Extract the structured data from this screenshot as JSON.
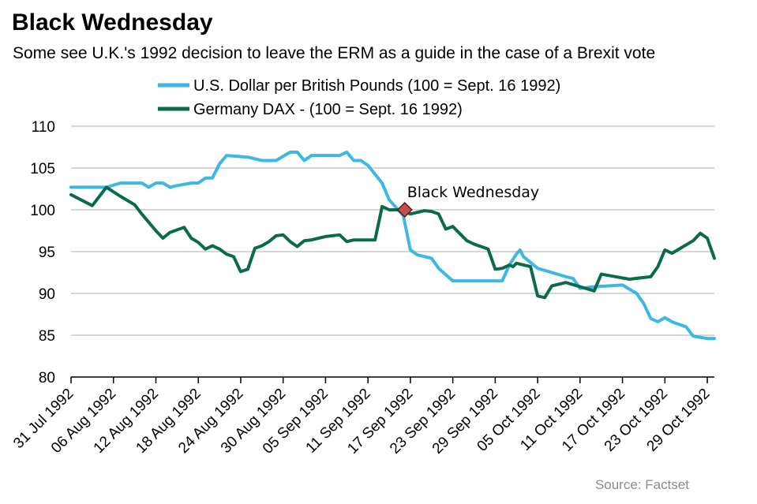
{
  "title": "Black Wednesday",
  "subtitle": "Some see U.K.'s 1992 decision  to leave the ERM as a guide in the case of a Brexit vote",
  "source": "Source: Factset",
  "chart_data": {
    "type": "line",
    "ylim": [
      80,
      110
    ],
    "yticks": [
      80,
      85,
      90,
      95,
      100,
      105,
      110
    ],
    "xlim": [
      0,
      91
    ],
    "xticks": [
      {
        "pos": 0,
        "label": "31 Jul 1992"
      },
      {
        "pos": 6,
        "label": "06 Aug 1992"
      },
      {
        "pos": 12,
        "label": "12 Aug 1992"
      },
      {
        "pos": 18,
        "label": "18 Aug 1992"
      },
      {
        "pos": 24,
        "label": "24 Aug 1992"
      },
      {
        "pos": 30,
        "label": "30 Aug 1992"
      },
      {
        "pos": 36,
        "label": "05 Sep 1992"
      },
      {
        "pos": 42,
        "label": "11 Sep 1992"
      },
      {
        "pos": 48,
        "label": "17 Sep 1992"
      },
      {
        "pos": 54,
        "label": "23 Sep 1992"
      },
      {
        "pos": 60,
        "label": "29 Sep 1992"
      },
      {
        "pos": 66,
        "label": "05 Oct 1992"
      },
      {
        "pos": 72,
        "label": "11 Oct 1992"
      },
      {
        "pos": 78,
        "label": "17 Oct 1992"
      },
      {
        "pos": 84,
        "label": "23 Oct 1992"
      },
      {
        "pos": 90,
        "label": "29 Oct 1992"
      }
    ],
    "grid": true,
    "legend_position": "top",
    "series": [
      {
        "name": "U.S. Dollar per British Pounds (100 = Sept. 16 1992)",
        "color": "#3db7e4",
        "x": [
          0,
          5,
          7,
          8,
          10,
          11,
          12,
          13,
          14,
          15,
          17,
          18,
          19,
          20,
          21,
          22,
          25,
          27,
          29,
          31,
          32,
          33,
          34,
          35,
          36,
          38,
          39,
          40,
          41,
          42,
          44,
          45,
          47,
          48,
          49,
          51,
          52,
          54,
          56,
          61,
          62,
          63,
          63.5,
          64,
          66,
          70,
          71,
          72,
          74,
          78,
          80,
          81,
          82,
          83,
          84,
          85,
          86,
          87,
          88,
          90,
          91
        ],
        "values": [
          102.7,
          102.7,
          103.2,
          103.2,
          103.2,
          102.7,
          103.2,
          103.2,
          102.7,
          102.9,
          103.2,
          103.2,
          103.8,
          103.8,
          105.5,
          106.5,
          106.3,
          105.9,
          105.9,
          106.9,
          106.9,
          105.9,
          106.5,
          106.5,
          106.5,
          106.5,
          106.9,
          105.9,
          105.9,
          105.3,
          103.2,
          101.2,
          99.3,
          95.2,
          94.6,
          94.2,
          93.0,
          91.5,
          91.5,
          91.5,
          93.4,
          94.7,
          95.2,
          94.4,
          93.0,
          92.0,
          91.8,
          90.6,
          90.8,
          91.0,
          90.0,
          88.8,
          87.0,
          86.6,
          87.1,
          86.6,
          86.3,
          86.0,
          84.9,
          84.6,
          84.6
        ]
      },
      {
        "name": "Germany DAX - (100 = Sept. 16 1992)",
        "color": "#0b6b48",
        "x": [
          0,
          3,
          5,
          7,
          9,
          10,
          12,
          13,
          14,
          16,
          17,
          18,
          19,
          20,
          21,
          22,
          23,
          24,
          25,
          26,
          27,
          28,
          29,
          30,
          31,
          32,
          33,
          34,
          35,
          36,
          38,
          39,
          40,
          42,
          43,
          44,
          45,
          46,
          47,
          48,
          50,
          51,
          52,
          53,
          54,
          56,
          57,
          59,
          60,
          61,
          62,
          62.5,
          63,
          65,
          66,
          67,
          68,
          70,
          72,
          74,
          75,
          77,
          79,
          80,
          82,
          83,
          84,
          85,
          88,
          89,
          90,
          91
        ],
        "values": [
          101.8,
          100.5,
          102.7,
          101.6,
          100.6,
          99.5,
          97.5,
          96.6,
          97.3,
          97.9,
          96.6,
          96.1,
          95.3,
          95.7,
          95.3,
          94.7,
          94.4,
          92.6,
          92.9,
          95.4,
          95.7,
          96.2,
          96.9,
          97.0,
          96.2,
          95.6,
          96.3,
          96.4,
          96.6,
          96.8,
          97.0,
          96.2,
          96.4,
          96.4,
          96.4,
          100.4,
          100.0,
          100.0,
          99.9,
          99.5,
          99.9,
          99.8,
          99.5,
          97.7,
          98.0,
          96.3,
          95.9,
          95.3,
          92.9,
          93.0,
          93.4,
          93.2,
          93.6,
          93.2,
          89.7,
          89.5,
          90.9,
          91.3,
          90.8,
          90.3,
          92.3,
          92.0,
          91.7,
          91.8,
          92.0,
          93.2,
          95.2,
          94.8,
          96.3,
          97.2,
          96.6,
          94.2
        ]
      }
    ],
    "annotations": [
      {
        "label": "Black Wednesday",
        "x": 47.2,
        "y": 100
      }
    ]
  }
}
